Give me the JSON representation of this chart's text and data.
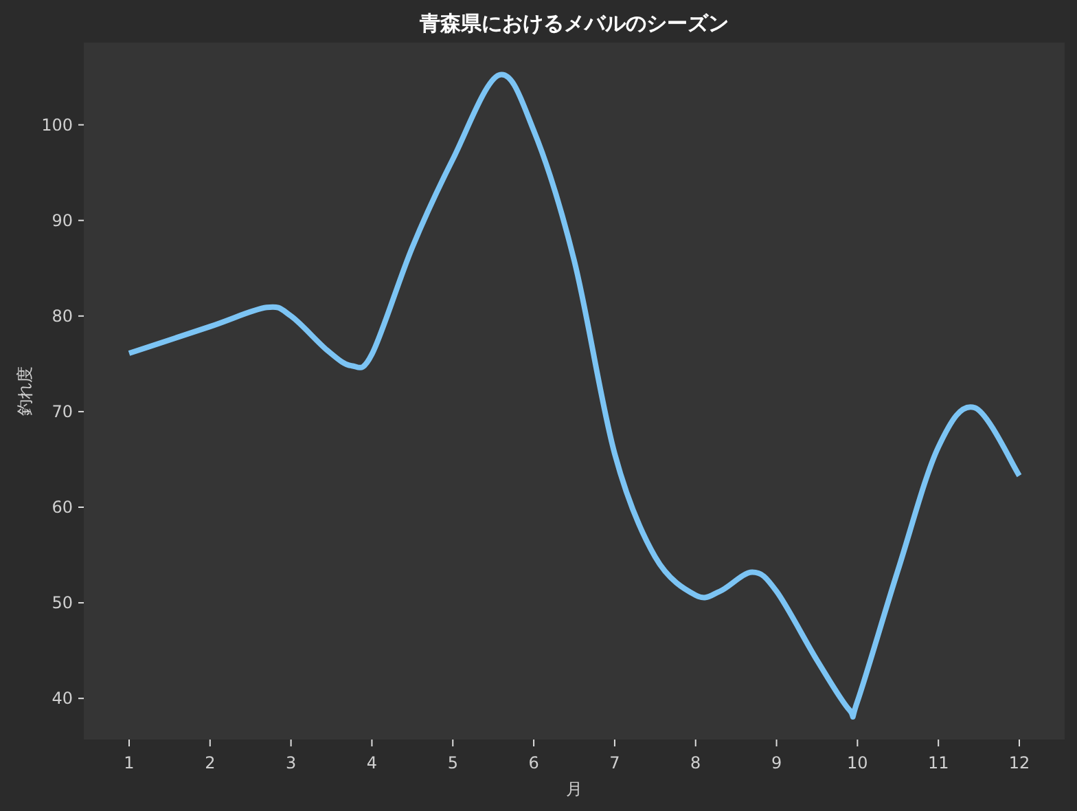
{
  "chart_data": {
    "type": "line",
    "title": "青森県におけるメバルのシーズン",
    "xlabel": "月",
    "ylabel": "釣れ度",
    "xlim": [
      0.44,
      12.56
    ],
    "ylim": [
      35.7,
      108.6
    ],
    "xticks": [
      1,
      2,
      3,
      4,
      5,
      6,
      7,
      8,
      9,
      10,
      11,
      12
    ],
    "yticks": [
      40,
      50,
      60,
      70,
      80,
      90,
      100
    ],
    "grid": false,
    "marker": "none",
    "line_style": "solid",
    "series": [
      {
        "color": "#7cc4f4",
        "x": [
          1,
          2,
          2.7,
          3,
          3.45,
          3.75,
          4,
          4.5,
          5,
          5.57,
          6,
          6.5,
          7,
          7.5,
          8,
          8.3,
          8.7,
          9,
          9.5,
          9.9,
          10,
          10.5,
          11,
          11.45,
          12
        ],
        "values": [
          76.1,
          78.9,
          80.9,
          80.0,
          76.4,
          74.8,
          76.0,
          87.2,
          96.4,
          105.2,
          99.4,
          85.8,
          65.6,
          54.8,
          50.8,
          51.2,
          53.2,
          51.2,
          44.0,
          38.8,
          39.7,
          53.4,
          66.3,
          70.4,
          63.3
        ]
      }
    ]
  }
}
